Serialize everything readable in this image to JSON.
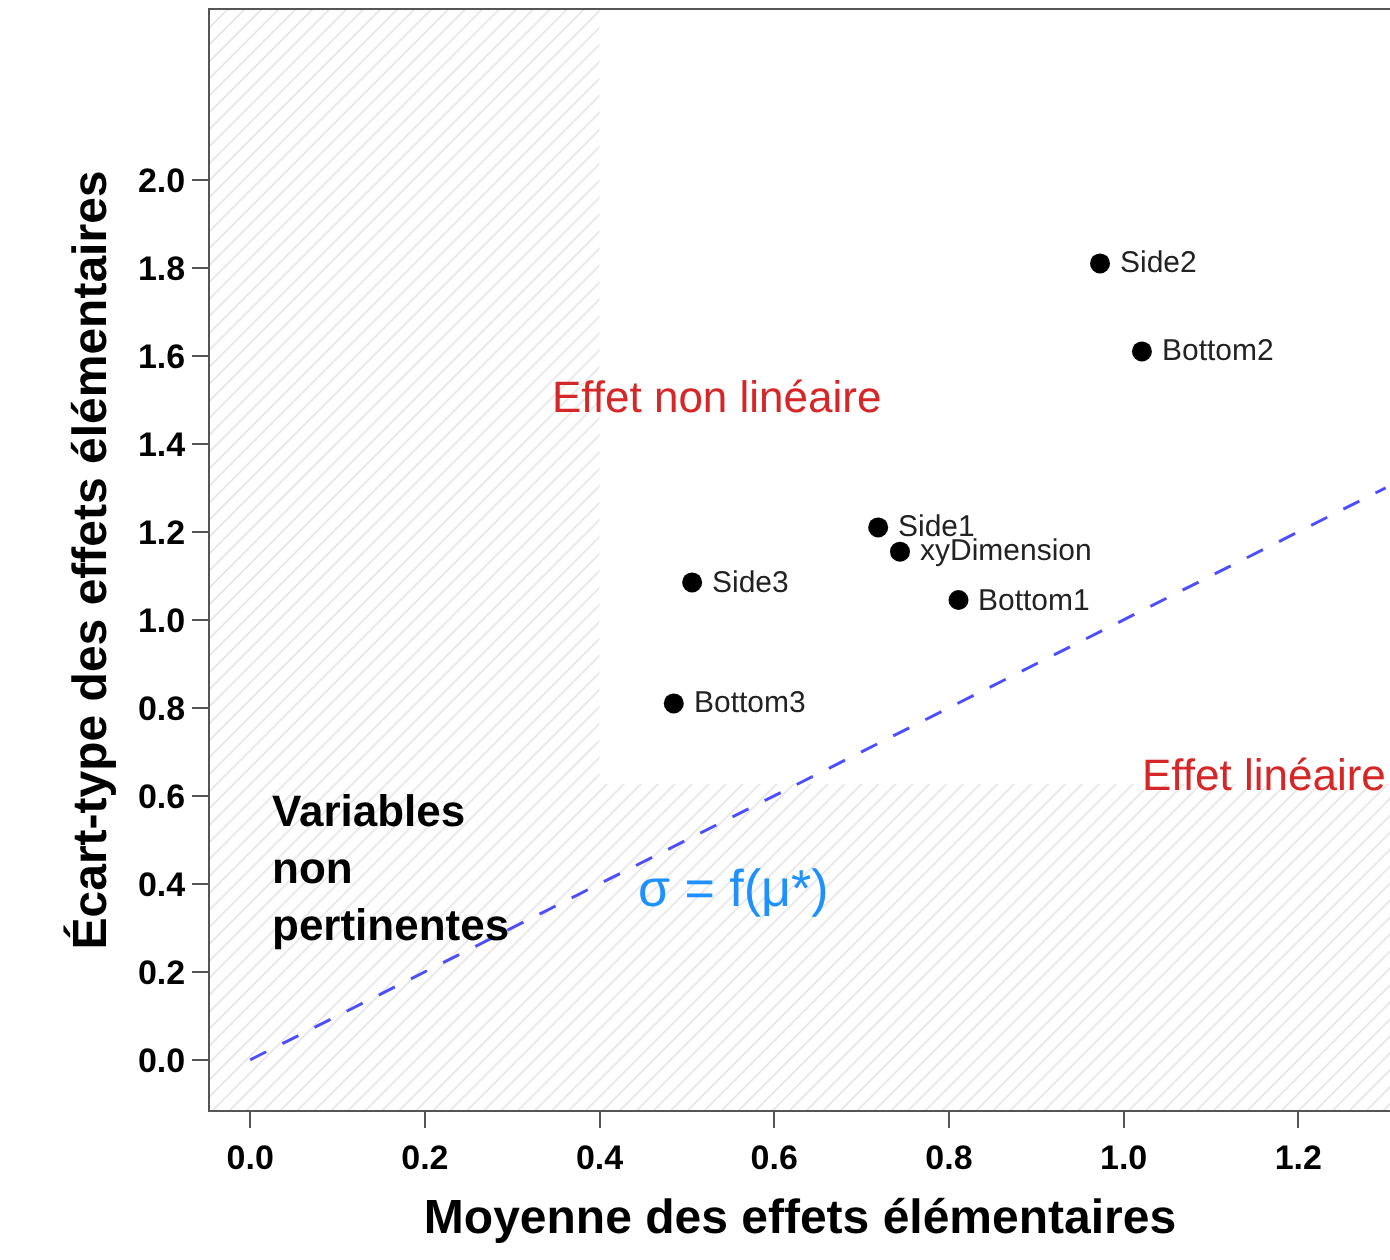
{
  "chart_data": {
    "type": "scatter",
    "xlabel": "Moyenne des effets élémentaires",
    "ylabel": "Écart-type des effets élémentaires",
    "xlim": [
      -0.046,
      1.305
    ],
    "ylim": [
      -0.114,
      2.386
    ],
    "xticks": [
      {
        "value": 0,
        "label": "0.0"
      },
      {
        "value": 0.2,
        "label": "0.2"
      },
      {
        "value": 0.4,
        "label": "0.4"
      },
      {
        "value": 0.6,
        "label": "0.6"
      },
      {
        "value": 0.8,
        "label": "0.8"
      },
      {
        "value": 1.0,
        "label": "1.0"
      },
      {
        "value": 1.2,
        "label": "1.2"
      }
    ],
    "yticks": [
      {
        "value": 0,
        "label": "0.0"
      },
      {
        "value": 0.2,
        "label": "0.2"
      },
      {
        "value": 0.4,
        "label": "0.4"
      },
      {
        "value": 0.6,
        "label": "0.6"
      },
      {
        "value": 0.8,
        "label": "0.8"
      },
      {
        "value": 1.0,
        "label": "1.0"
      },
      {
        "value": 1.2,
        "label": "1.2"
      },
      {
        "value": 1.4,
        "label": "1.4"
      },
      {
        "value": 1.6,
        "label": "1.6"
      },
      {
        "value": 1.8,
        "label": "1.8"
      },
      {
        "value": 2.0,
        "label": "2.0"
      }
    ],
    "marker": "circle",
    "series": [
      {
        "color": "#000000",
        "x": [
          0.973,
          1.021,
          0.719,
          0.744,
          0.811,
          0.506,
          0.485
        ],
        "values": [
          1.81,
          1.61,
          1.21,
          1.155,
          1.045,
          1.085,
          0.81
        ]
      },
      {
        "type": "line",
        "name": "σ = f(μ*)",
        "color": "#4d4dff",
        "line_style": "dashed",
        "marker": "none",
        "x": [
          0,
          1.3
        ],
        "values": [
          0,
          1.3
        ]
      }
    ],
    "bands": [
      {
        "axis": "x",
        "from": -0.046,
        "to": 0.4,
        "color": "#cccccc",
        "label": "Variables\nnon\npertinentes"
      },
      {
        "axis": "y",
        "from": -0.114,
        "to": 0.627,
        "color": "#cccccc",
        "label": "Effet linéaire"
      }
    ],
    "annotations": [
      {
        "text": "Side2",
        "x": 0.973,
        "y": 1.81
      },
      {
        "text": "Bottom2",
        "x": 1.021,
        "y": 1.61
      },
      {
        "text": "Side1",
        "x": 0.719,
        "y": 1.21
      },
      {
        "text": "xyDimension",
        "x": 0.744,
        "y": 1.155
      },
      {
        "text": "Bottom1",
        "x": 0.811,
        "y": 1.045
      },
      {
        "text": "Side3",
        "x": 0.506,
        "y": 1.085
      },
      {
        "text": "Bottom3",
        "x": 0.485,
        "y": 0.81
      },
      "Effet non linéaire"
    ]
  }
}
